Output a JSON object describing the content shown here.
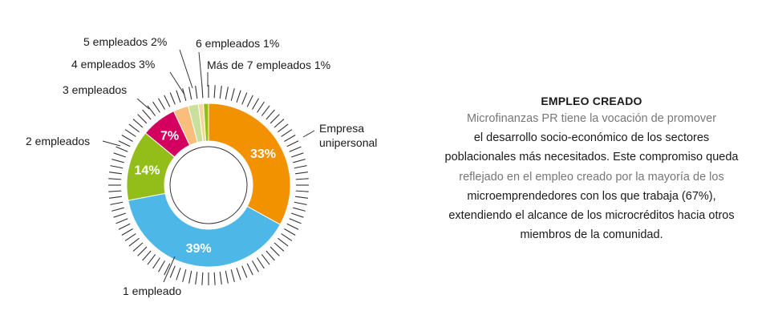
{
  "chart_data": {
    "type": "donut",
    "title": "",
    "slices": [
      {
        "label": "Empresa\nunipersonal",
        "value": 33,
        "pct_label": "33%",
        "color": "#f39200"
      },
      {
        "label": "1 empleado",
        "value": 39,
        "pct_label": "39%",
        "color": "#4db8e8"
      },
      {
        "label": "2 empleados",
        "value": 14,
        "pct_label": "14%",
        "color": "#93be1a"
      },
      {
        "label": "3 empleados",
        "value": 7,
        "pct_label": "7%",
        "color": "#d4005f"
      },
      {
        "label": "4 empleados 3%",
        "value": 3,
        "pct_label": "",
        "color": "#f9bd7c"
      },
      {
        "label": "5 empleados 2%",
        "value": 2,
        "pct_label": "",
        "color": "#c9df9c"
      },
      {
        "label": "6 empleados 1%",
        "value": 1,
        "pct_label": "",
        "color": "#f4d79a"
      },
      {
        "label": "Más de 7 empleados 1%",
        "value": 1,
        "pct_label": "",
        "color": "#93be1a"
      }
    ]
  },
  "text": {
    "title": "EMPLEO CREADO",
    "lines": [
      {
        "text": "Microfinanzas PR tiene la vocación de promover",
        "tone": "gray"
      },
      {
        "text": "el desarrollo socio-económico de los sectores",
        "tone": "dark"
      },
      {
        "text": "poblacionales más necesitados. Este compromiso queda",
        "tone": "dark"
      },
      {
        "text": "reflejado en el empleo creado por la mayoría de los",
        "tone": "gray"
      },
      {
        "text": "microemprendedores con los que trabaja (67%),",
        "tone": "dark"
      },
      {
        "text": "extendiendo el alcance de los microcréditos hacia otros",
        "tone": "dark"
      },
      {
        "text": "miembros de la comunidad.",
        "tone": "dark"
      }
    ]
  },
  "colors": {
    "tick": "#333333",
    "text": "#1a1a1a",
    "gray_text": "#777777"
  }
}
